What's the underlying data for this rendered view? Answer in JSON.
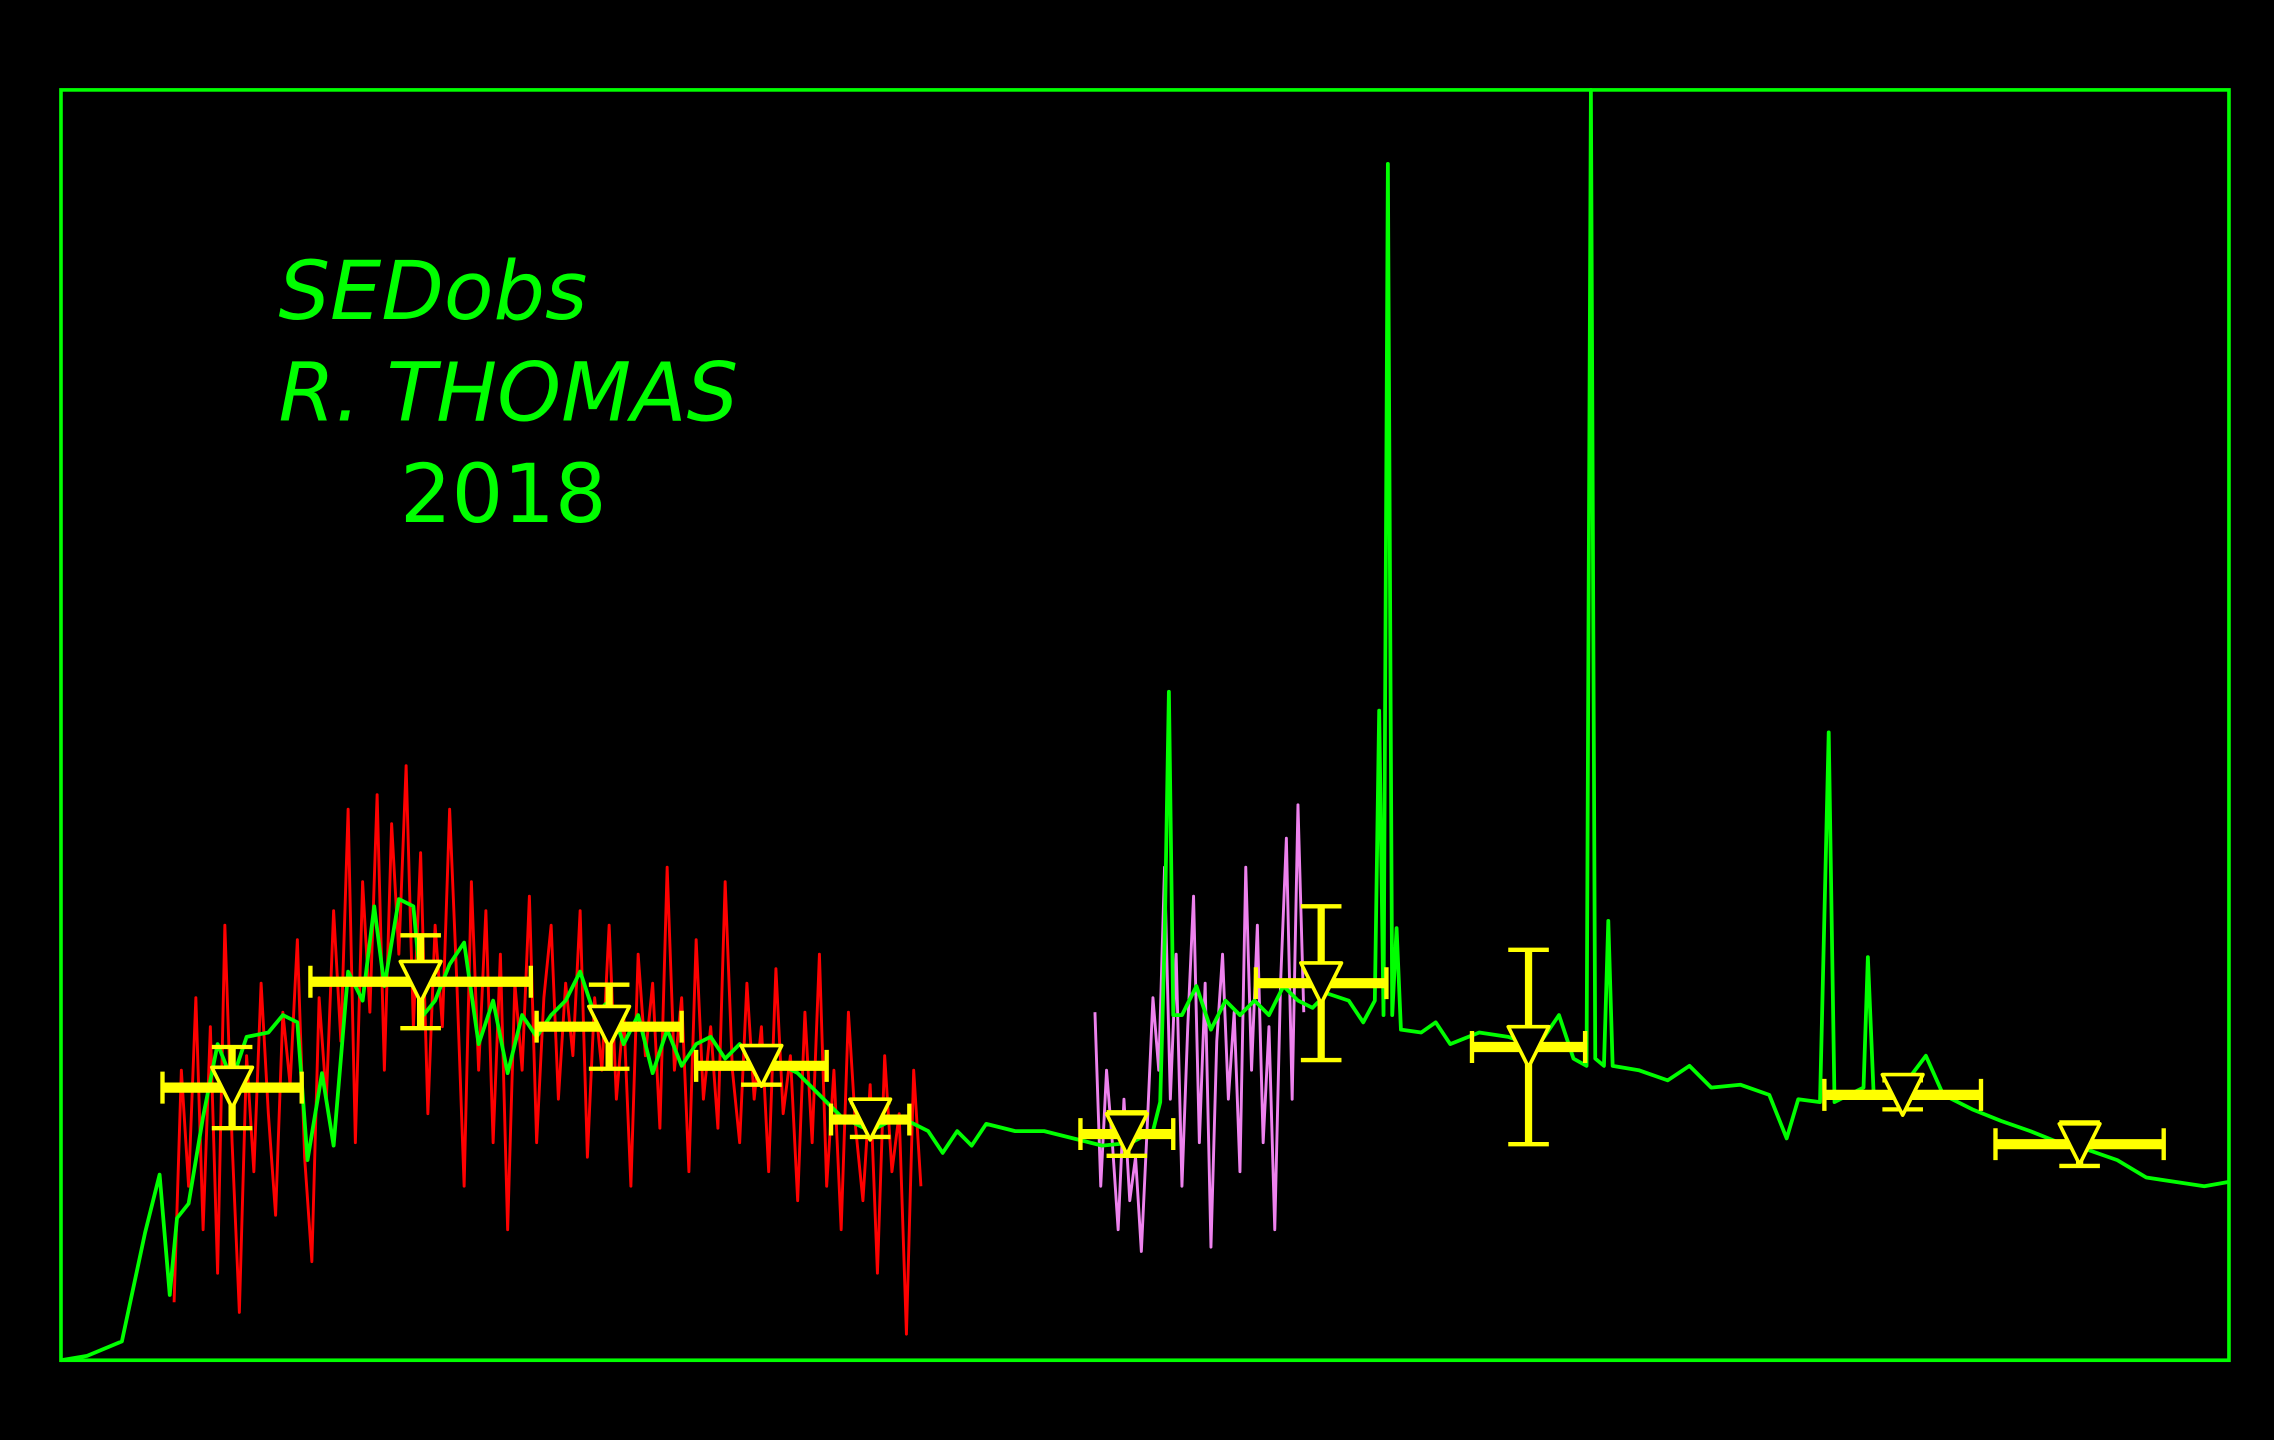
{
  "chart_data": {
    "type": "line",
    "texts": [
      "SEDobs",
      "R. THOMAS",
      "2018"
    ],
    "xlim": [
      0,
      1495
    ],
    "ylim": [
      0,
      876
    ],
    "frame_color": "#00ff00",
    "series": [
      {
        "color": "#ff0000",
        "x": [
          78,
          83,
          88,
          93,
          98,
          103,
          108,
          113,
          118,
          123,
          128,
          133,
          138,
          143,
          148,
          153,
          158,
          163,
          168,
          173,
          178,
          183,
          188,
          193,
          198,
          203,
          208,
          213,
          218,
          223,
          228,
          233,
          238,
          243,
          248,
          253,
          258,
          263,
          268,
          273,
          278,
          283,
          288,
          293,
          298,
          303,
          308,
          313,
          318,
          323,
          328,
          333,
          338,
          343,
          348,
          353,
          358,
          363,
          368,
          373,
          378,
          383,
          388,
          393,
          398,
          403,
          408,
          413,
          418,
          423,
          428,
          433,
          438,
          443,
          448,
          453,
          458,
          463,
          468,
          473,
          478,
          483,
          488,
          493,
          498,
          503,
          508,
          513,
          518,
          523,
          528,
          533,
          538,
          543,
          548,
          553,
          558,
          563,
          568,
          573,
          578,
          583,
          588,
          593
        ],
        "values": [
          40,
          200,
          120,
          250,
          90,
          230,
          60,
          300,
          150,
          33,
          210,
          130,
          260,
          170,
          100,
          240,
          190,
          290,
          140,
          68,
          250,
          180,
          310,
          220,
          380,
          150,
          330,
          240,
          390,
          200,
          370,
          280,
          410,
          230,
          350,
          170,
          300,
          230,
          380,
          260,
          120,
          330,
          200,
          310,
          150,
          280,
          90,
          260,
          200,
          320,
          150,
          250,
          300,
          180,
          260,
          210,
          310,
          140,
          250,
          200,
          300,
          180,
          240,
          120,
          280,
          210,
          260,
          160,
          340,
          200,
          250,
          130,
          290,
          180,
          230,
          160,
          330,
          200,
          150,
          260,
          180,
          230,
          130,
          270,
          170,
          210,
          110,
          240,
          150,
          280,
          120,
          200,
          90,
          240,
          160,
          110,
          190,
          60,
          210,
          130,
          170,
          18,
          200,
          120
        ]
      },
      {
        "color": "#ee82ee",
        "x": [
          713,
          717,
          721,
          725,
          729,
          733,
          737,
          741,
          745,
          749,
          753,
          757,
          761,
          765,
          769,
          773,
          777,
          781,
          785,
          789,
          793,
          797,
          801,
          805,
          809,
          813,
          817,
          821,
          825,
          829,
          833,
          837,
          841,
          845,
          849,
          853,
          857
        ],
        "values": [
          240,
          120,
          200,
          150,
          90,
          180,
          110,
          140,
          75,
          160,
          250,
          200,
          340,
          180,
          280,
          120,
          230,
          320,
          150,
          260,
          78,
          220,
          280,
          180,
          240,
          130,
          340,
          200,
          300,
          150,
          230,
          90,
          260,
          360,
          180,
          383,
          240
        ]
      },
      {
        "color": "#00ff00",
        "x": [
          0,
          18,
          42,
          58,
          68,
          75,
          80,
          88,
          98,
          108,
          118,
          128,
          143,
          153,
          163,
          170,
          180,
          188,
          198,
          208,
          216,
          223,
          233,
          243,
          250,
          258,
          268,
          278,
          288,
          298,
          308,
          318,
          328,
          338,
          348,
          358,
          368,
          378,
          388,
          398,
          408,
          418,
          428,
          438,
          448,
          458,
          468,
          478,
          488,
          498,
          508,
          518,
          528,
          538,
          548,
          558,
          578,
          598,
          608,
          618,
          628,
          638,
          658,
          678,
          698,
          718,
          738,
          753,
          758,
          761,
          764,
          767,
          773,
          783,
          793,
          803,
          813,
          823,
          833,
          843,
          853,
          863,
          873,
          888,
          898,
          906,
          909,
          912,
          915,
          918,
          921,
          924,
          938,
          948,
          958,
          978,
          998,
          1018,
          1033,
          1043,
          1052,
          1055,
          1058,
          1064,
          1067,
          1070,
          1088,
          1108,
          1123,
          1138,
          1158,
          1178,
          1190,
          1198,
          1213,
          1219,
          1223,
          1243,
          1246,
          1250,
          1268,
          1286,
          1298,
          1318,
          1338,
          1358,
          1378,
          1398,
          1418,
          1438,
          1458,
          1478,
          1495
        ],
        "values": [
          0,
          3,
          13,
          88,
          128,
          45,
          98,
          108,
          168,
          218,
          193,
          223,
          226,
          238,
          233,
          138,
          198,
          148,
          268,
          248,
          313,
          258,
          318,
          313,
          238,
          248,
          273,
          288,
          218,
          248,
          198,
          238,
          223,
          238,
          248,
          268,
          238,
          248,
          218,
          238,
          198,
          228,
          203,
          218,
          223,
          208,
          218,
          208,
          208,
          203,
          198,
          188,
          178,
          168,
          163,
          158,
          168,
          158,
          143,
          158,
          148,
          163,
          158,
          158,
          153,
          148,
          150,
          158,
          178,
          288,
          461,
          238,
          238,
          258,
          228,
          248,
          238,
          248,
          238,
          258,
          248,
          243,
          253,
          248,
          233,
          248,
          448,
          238,
          825,
          238,
          298,
          228,
          226,
          233,
          218,
          226,
          223,
          216,
          238,
          208,
          203,
          876,
          208,
          203,
          303,
          203,
          200,
          193,
          203,
          188,
          190,
          183,
          153,
          180,
          178,
          433,
          178,
          188,
          278,
          183,
          186,
          210,
          183,
          173,
          165,
          158,
          150,
          145,
          138,
          126,
          123,
          120,
          123
        ]
      }
    ],
    "errorbars": {
      "color": "#ffff00",
      "x": [
        118,
        248,
        378,
        483,
        558,
        735,
        869,
        1012,
        1270,
        1392
      ],
      "xerr": [
        48,
        76,
        50,
        45,
        27,
        32,
        45,
        39,
        54,
        58
      ],
      "values": [
        188,
        261,
        230,
        203,
        166,
        156,
        260,
        216,
        183,
        149
      ],
      "yerr": [
        28,
        32,
        29,
        13,
        12,
        15,
        53,
        67,
        10,
        15
      ]
    }
  }
}
